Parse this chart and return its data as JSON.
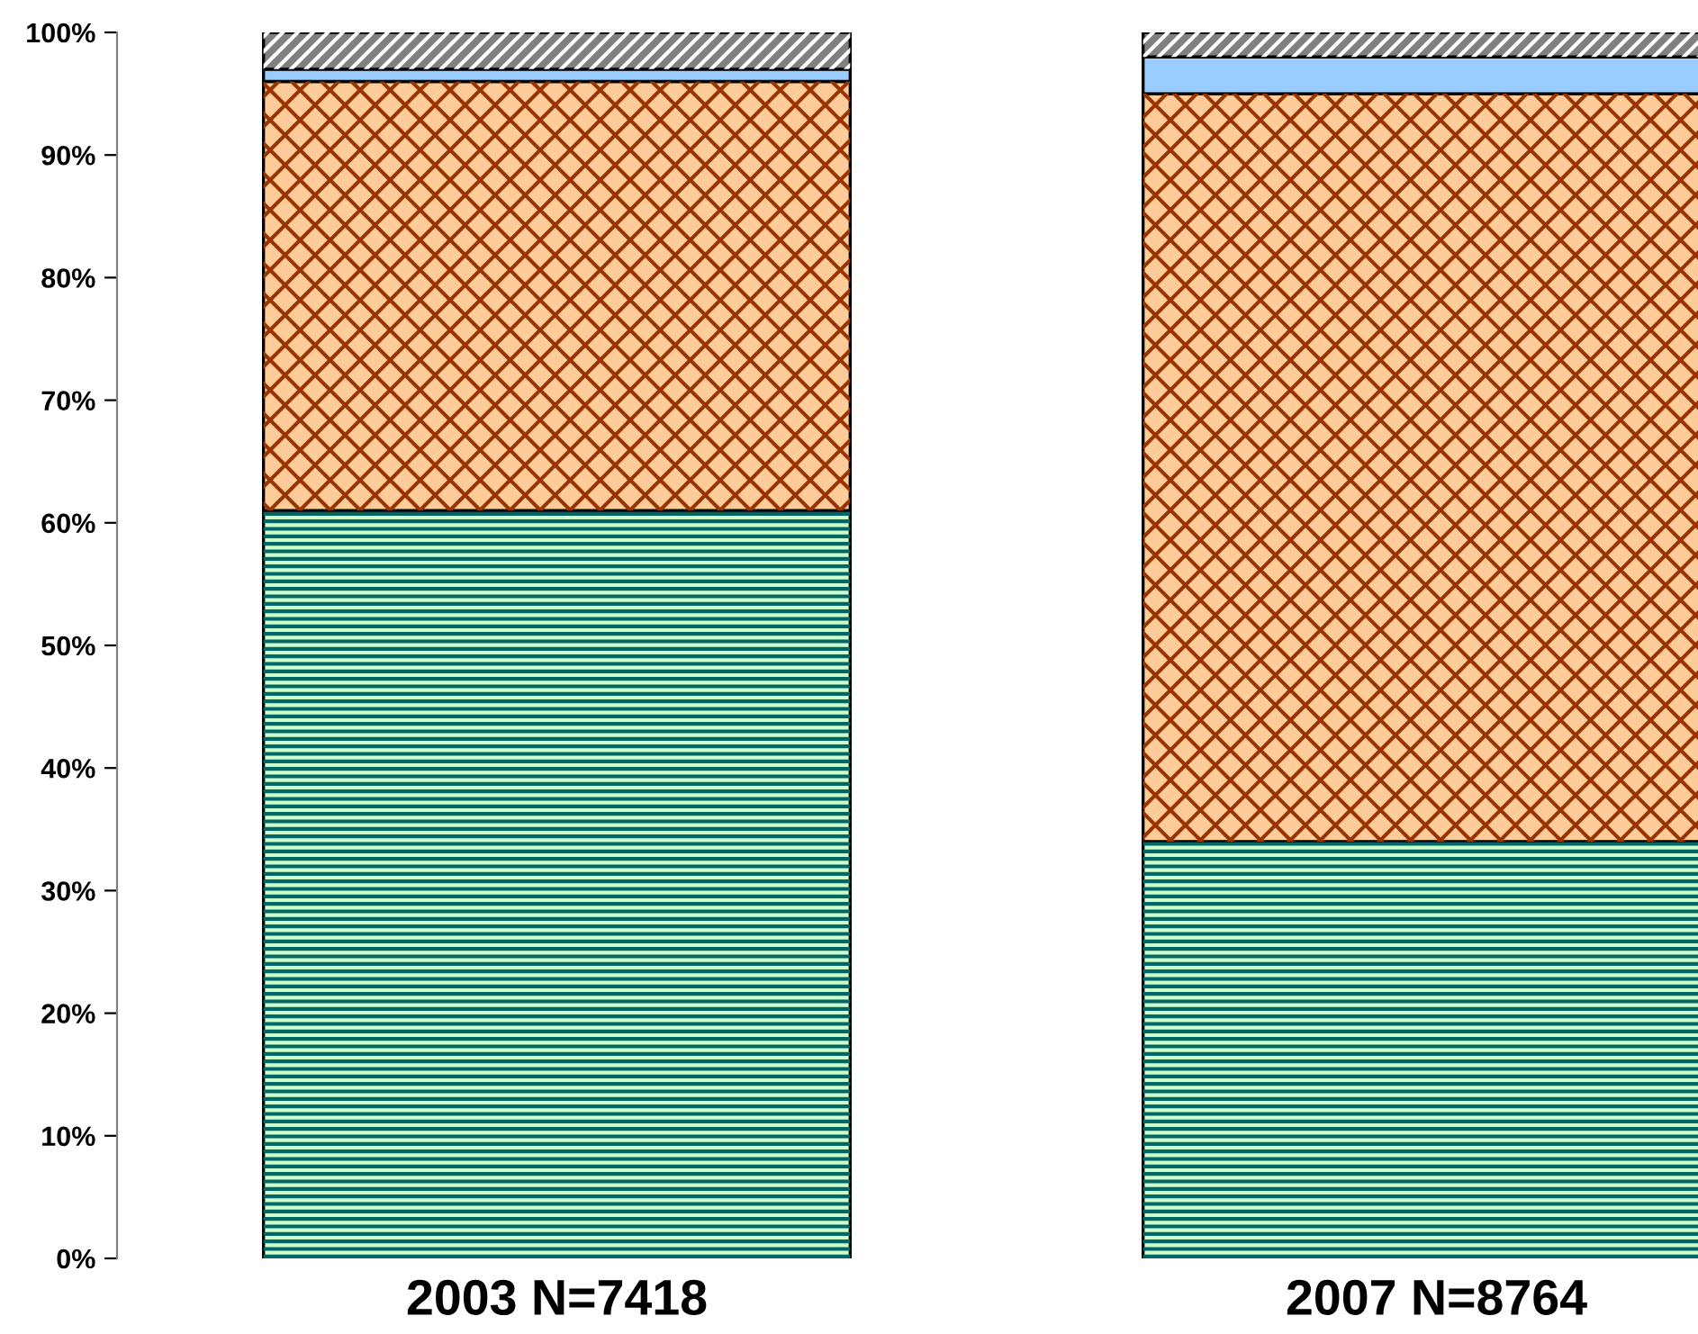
{
  "chart_data": {
    "type": "bar",
    "stacked": true,
    "categories": [
      "2003 N=7418",
      "2007 N=8764"
    ],
    "series": [
      {
        "color": "#ccffcc",
        "values": [
          61,
          34
        ]
      },
      {
        "color": "#ffcc99",
        "values": [
          35,
          61
        ]
      },
      {
        "color": "#99ccff",
        "values": [
          1,
          3
        ]
      },
      {
        "color": "#808080",
        "values": [
          3,
          2
        ]
      }
    ],
    "ylim": [
      0,
      100
    ],
    "yticks": [
      {
        "value": 0,
        "label": "0%"
      },
      {
        "value": 10,
        "label": "10%"
      },
      {
        "value": 20,
        "label": "20%"
      },
      {
        "value": 30,
        "label": "30%"
      },
      {
        "value": 40,
        "label": "40%"
      },
      {
        "value": 50,
        "label": "50%"
      },
      {
        "value": 60,
        "label": "60%"
      },
      {
        "value": 70,
        "label": "70%"
      },
      {
        "value": 80,
        "label": "80%"
      },
      {
        "value": 90,
        "label": "90%"
      },
      {
        "value": 100,
        "label": "100%"
      }
    ],
    "grid": false
  }
}
